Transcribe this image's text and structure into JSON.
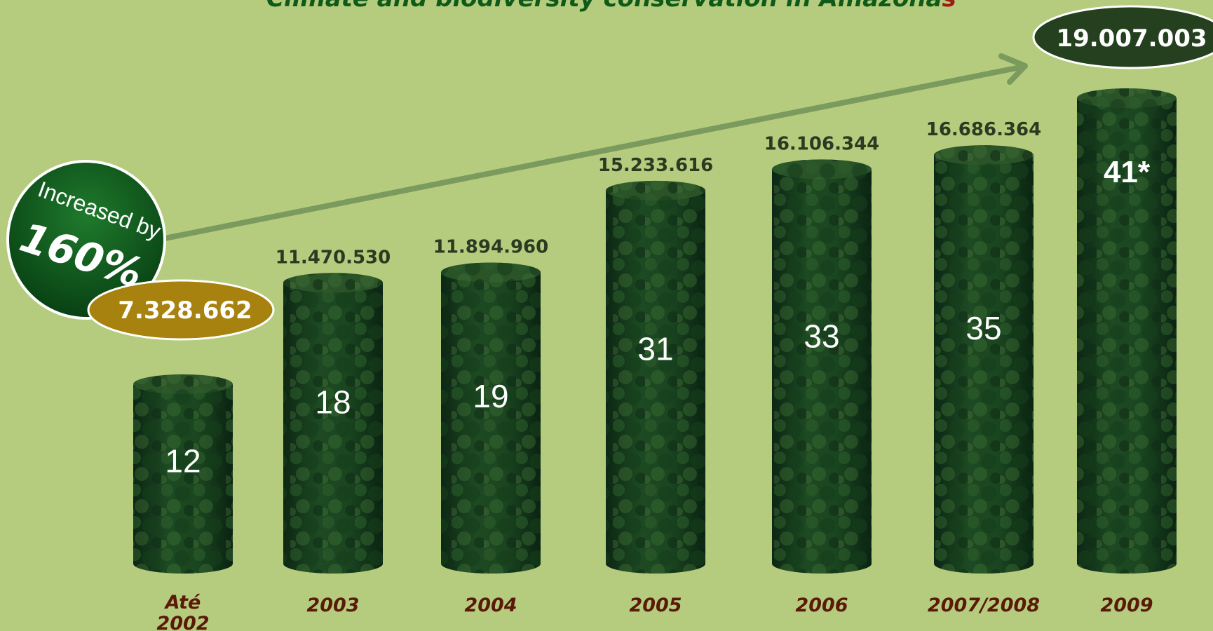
{
  "title": {
    "text": "Climate and biodiversity conservation in Amazona",
    "last_letter": "s"
  },
  "badge": {
    "line1": "Increased by",
    "line2": "160%"
  },
  "colors": {
    "background": "#b5cc7e",
    "forest_dark": "#0e2a18",
    "forest_mid": "#1f4d22",
    "forest_light": "#3a6a30",
    "value_label": "#2b3b22",
    "year_label": "#5a1a08",
    "start_pill": "#a8820e",
    "end_pill": "#24401e",
    "arrow": "#7a9a5e",
    "badge_green": "#0f5a1e"
  },
  "chart_data": {
    "type": "bar",
    "categories": [
      "Até 2002",
      "2003",
      "2004",
      "2005",
      "2006",
      "2007/2008",
      "2009"
    ],
    "series": [
      {
        "values": [
          7328662,
          11470530,
          11894960,
          15233616,
          16106344,
          16686364,
          19007003
        ]
      }
    ],
    "value_labels": [
      "7.328.662",
      "11.470.530",
      "11.894.960",
      "15.233.616",
      "16.106.344",
      "16.686.364",
      "19.007.003"
    ],
    "inner_labels": [
      "12",
      "18",
      "19",
      "31",
      "33",
      "35",
      "41*"
    ],
    "ylim": [
      0,
      20500000
    ],
    "grid": false,
    "legend": "none"
  }
}
